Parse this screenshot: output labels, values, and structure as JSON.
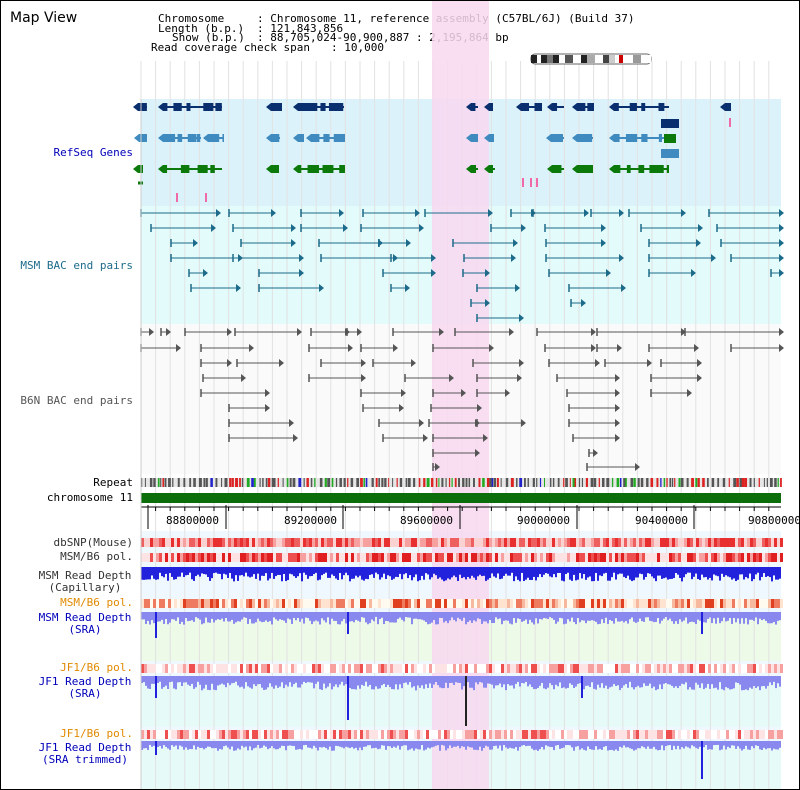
{
  "view_title": "Map View",
  "header": {
    "chromosome_key": "Chromosome",
    "chromosome_val": ": Chromosome 11, reference assembly (C57BL/6J) (Build 37)",
    "length_key": "Length (b.p.)",
    "length_val": ": 121,843,856",
    "show_key": "Show (b.p.)",
    "show_val": ": 88,705,024-90,900,887 : 2,195,864 bp",
    "coverage_key": "Read coverage check span",
    "coverage_val": ": 10,000"
  },
  "track_labels": {
    "refseq": "RefSeq Genes",
    "msm_bac": "MSM BAC end pairs",
    "b6n_bac": "B6N BAC end pairs",
    "repeat": "Repeat",
    "chromosome": "chromosome 11",
    "dbsnp": "dbSNP(Mouse)",
    "msm_b6_pol_1": "MSM/B6 pol.",
    "msm_depth_cap_1": "MSM Read Depth",
    "msm_depth_cap_2": "(Capillary)",
    "msm_b6_pol_2": "MSM/B6 pol.",
    "msm_depth_sra_1": "MSM Read Depth",
    "msm_depth_sra_2": "(SRA)",
    "jf1_b6_pol_1": "JF1/B6 pol.",
    "jf1_depth_sra_1": "JF1 Read Depth",
    "jf1_depth_sra_2": "(SRA)",
    "jf1_b6_pol_2": "JF1/B6 pol.",
    "jf1_depth_tr_1": "JF1 Read Depth",
    "jf1_depth_tr_2": "(SRA trimmed)"
  },
  "axis_ticks": [
    "88800000",
    "89200000",
    "89600000",
    "90000000",
    "90400000",
    "90800000"
  ],
  "colors": {
    "refseq_dark": "#0a2f6e",
    "refseq_light": "#3f8bbf",
    "refseq_green": "#0b7a0b",
    "refseq_bg": "#dbf2fb",
    "bac_bg": "#e3fbfb",
    "msm_color": "#1c6b8a",
    "b6n_color": "#555555",
    "chromosome_green": "#0b6e0b",
    "highlight": "#f8d8f0",
    "depth_blue": "#2222dd",
    "depth_light": "#8888ee",
    "pol_red": "#ee3333",
    "pol_orange": "#e8a24a",
    "label_blue": "#0000bb",
    "label_teal": "#1c6b8a",
    "label_gray": "#555555",
    "label_orange": "#e08a00"
  }
}
